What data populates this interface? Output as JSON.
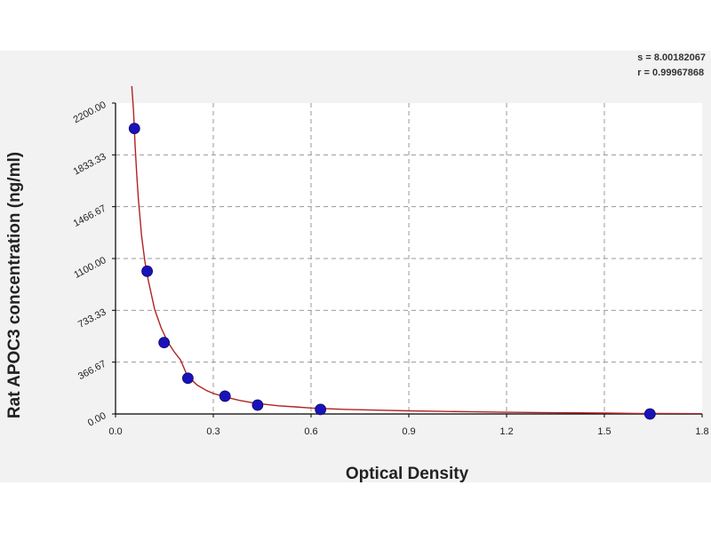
{
  "stats": {
    "s_line": "s = 8.00182067",
    "r_line": "r = 0.99967868"
  },
  "colors": {
    "background": "#f2f2f2",
    "plot_area": "#ffffff",
    "curve": "#b22222",
    "points": "#1a12b8",
    "grid": "#999999"
  },
  "chart_data": {
    "type": "scatter",
    "xlabel": "Optical Density",
    "ylabel": "Rat APOC3 concentration (ng/ml)",
    "xlim": [
      0,
      1.8
    ],
    "ylim": [
      0,
      2200
    ],
    "x_ticks": [
      "0.0",
      "0.3",
      "0.6",
      "0.9",
      "1.2",
      "1.5",
      "1.8"
    ],
    "y_ticks": [
      "0.00",
      "366.67",
      "733.33",
      "1100.00",
      "1466.67",
      "1833.33",
      "2200.00"
    ],
    "grid": true,
    "series": [
      {
        "marker": "circle",
        "x": [
          0.058,
          0.097,
          0.149,
          0.222,
          0.336,
          0.436,
          0.629,
          1.64
        ],
        "y": [
          2020,
          1010,
          505,
          253,
          126,
          63,
          32,
          0
        ]
      }
    ],
    "fit_curve": {
      "x": [
        0.05,
        0.055,
        0.06,
        0.065,
        0.07,
        0.08,
        0.09,
        0.1,
        0.12,
        0.14,
        0.16,
        0.18,
        0.2,
        0.22,
        0.25,
        0.28,
        0.3,
        0.34,
        0.38,
        0.42,
        0.46,
        0.5,
        0.55,
        0.6,
        0.65,
        0.7,
        0.8,
        0.9,
        1.0,
        1.1,
        1.2,
        1.3,
        1.4,
        1.5,
        1.6,
        1.64,
        1.8
      ],
      "y": [
        2320,
        2150,
        1900,
        1700,
        1520,
        1260,
        1080,
        950,
        740,
        610,
        510,
        440,
        380,
        270,
        205,
        165,
        145,
        118,
        96,
        80,
        68,
        58,
        50,
        42,
        37,
        33,
        27,
        22,
        18,
        15,
        12,
        10,
        8,
        6,
        4,
        3,
        2
      ]
    }
  }
}
